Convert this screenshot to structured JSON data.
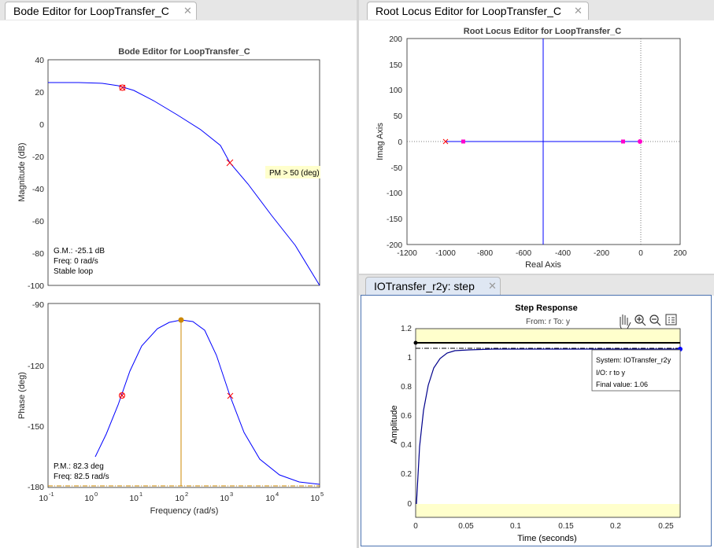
{
  "bode": {
    "tab_title": "Bode Editor for LoopTransfer_C",
    "plot_title": "Bode Editor for LoopTransfer_C",
    "mag_ylabel": "Magnitude (dB)",
    "phase_ylabel": "Phase (deg)",
    "xlabel": "Frequency (rad/s)",
    "mag_ticks": [
      "40",
      "20",
      "0",
      "-20",
      "-40",
      "-60",
      "-80",
      "-100"
    ],
    "phase_ticks": [
      "-90",
      "-120",
      "-150",
      "-180"
    ],
    "x_ticks": [
      "10",
      "10",
      "10",
      "10",
      "10",
      "10",
      "10"
    ],
    "x_exps": [
      "-1",
      "0",
      "1",
      "2",
      "3",
      "4",
      "5"
    ],
    "pm_hint": "PM > 50 (deg)",
    "gm_text": "G.M.: -25.1 dB",
    "gm_freq": "Freq: 0 rad/s",
    "stable": "Stable loop",
    "pm_text": "P.M.: 82.3 deg",
    "pm_freq": "Freq: 82.5 rad/s"
  },
  "rlocus": {
    "tab_title": "Root Locus Editor for LoopTransfer_C",
    "plot_title": "Root Locus Editor for LoopTransfer_C",
    "xlabel": "Real Axis",
    "ylabel": "Imag Axis",
    "x_ticks": [
      "-1200",
      "-1000",
      "-800",
      "-600",
      "-400",
      "-200",
      "0",
      "200"
    ],
    "y_ticks": [
      "200",
      "150",
      "100",
      "50",
      "0",
      "-50",
      "-100",
      "-150",
      "-200"
    ]
  },
  "step": {
    "tab_title": "IOTransfer_r2y: step",
    "title": "Step Response",
    "from_to": "From: r  To: y",
    "xlabel": "Time (seconds)",
    "ylabel": "Amplitude",
    "x_ticks": [
      "0",
      "0.05",
      "0.1",
      "0.15",
      "0.2",
      "0.25"
    ],
    "y_ticks": [
      "1.2",
      "1",
      "0.8",
      "0.6",
      "0.4",
      "0.2",
      "0"
    ],
    "tip_system": "System: IOTransfer_r2y",
    "tip_io": "I/O: r to y",
    "tip_final": "Final value: 1.06"
  },
  "colors": {
    "curve": "#0000ff",
    "marker": "#ff0000",
    "orange": "#cc8800",
    "magenta": "#ff00cc",
    "highlight": "#ffffcc"
  },
  "icons": [
    "close-icon",
    "pan-hand-icon",
    "zoom-in-icon",
    "zoom-out-icon",
    "legend-icon"
  ]
}
